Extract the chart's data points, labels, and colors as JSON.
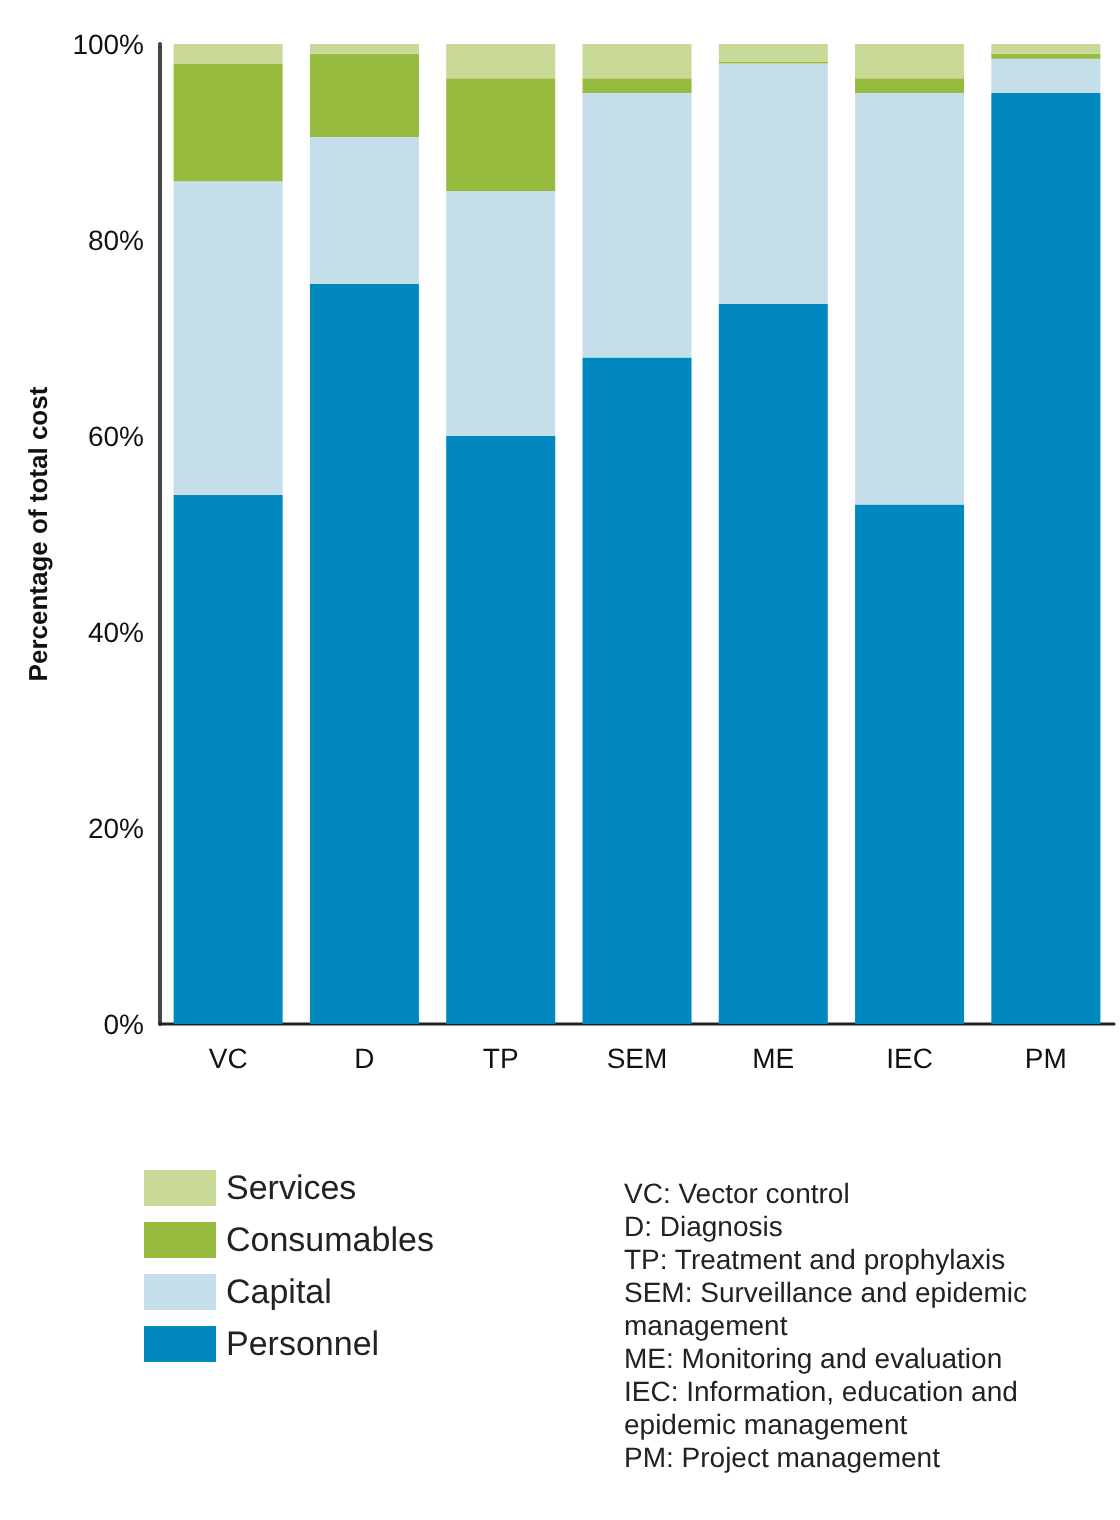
{
  "chart_data": {
    "type": "bar",
    "stacked": true,
    "ylabel": "Percentage of total cost",
    "categories": [
      "VC",
      "D",
      "TP",
      "SEM",
      "ME",
      "IEC",
      "PM"
    ],
    "series": [
      {
        "name": "Personnel",
        "color": "#0088bf",
        "values": [
          54,
          75.5,
          60,
          68,
          73.5,
          53,
          95
        ]
      },
      {
        "name": "Capital",
        "color": "#c4dfe9",
        "values": [
          32,
          15,
          25,
          27,
          24.5,
          42,
          3.5
        ]
      },
      {
        "name": "Consumables",
        "color": "#97bb3e",
        "values": [
          12,
          8.5,
          11.5,
          1.5,
          0.2,
          1.5,
          0.5
        ]
      },
      {
        "name": "Services",
        "color": "#c8d896",
        "values": [
          2,
          1,
          3.5,
          3.5,
          1.8,
          3.5,
          1
        ]
      }
    ],
    "ylim": [
      0,
      100
    ],
    "yticks": [
      {
        "value": 0,
        "label": "0%"
      },
      {
        "value": 20,
        "label": "20%"
      },
      {
        "value": 40,
        "label": "40%"
      },
      {
        "value": 60,
        "label": "60%"
      },
      {
        "value": 80,
        "label": "80%"
      },
      {
        "value": 100,
        "label": "100%"
      }
    ],
    "grid": false,
    "legend": "bottom left",
    "annotations": [
      "VC: Vector control",
      "D: Diagnosis",
      "TP: Treatment and prophylaxis",
      "SEM: Surveillance and epidemic management",
      "ME: Monitoring and evaluation",
      "IEC: Information, education and epidemic management",
      "PM: Project management"
    ]
  }
}
